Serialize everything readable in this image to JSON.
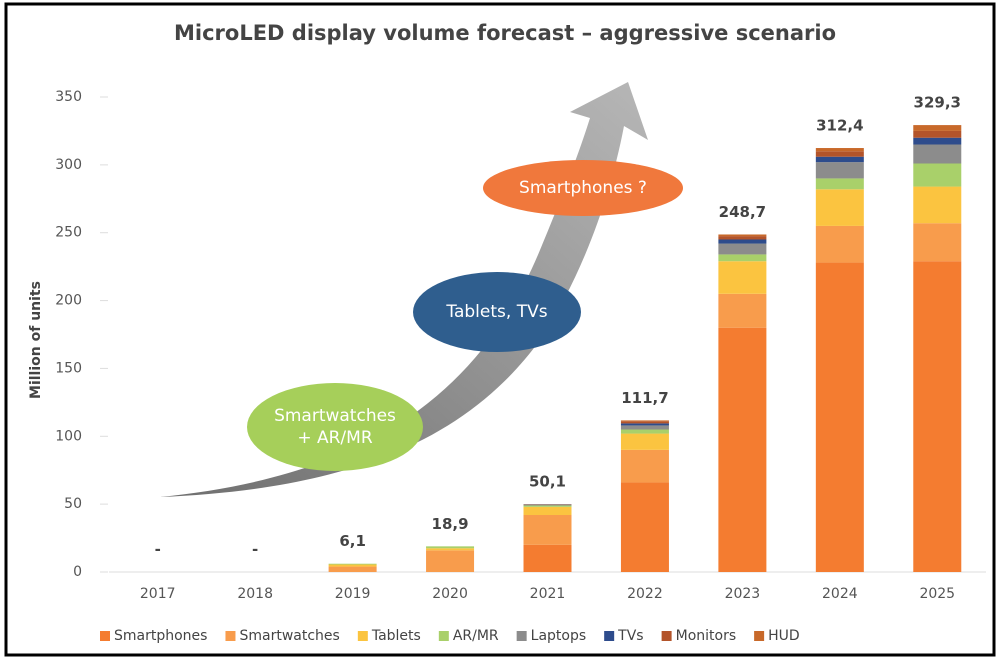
{
  "chart_data": {
    "type": "bar",
    "stacked": true,
    "title": "MicroLED display volume forecast – aggressive scenario",
    "y_label": "Million of units",
    "categories": [
      "2017",
      "2018",
      "2019",
      "2020",
      "2021",
      "2022",
      "2023",
      "2024",
      "2025"
    ],
    "series": [
      {
        "name": "Smartphones",
        "color": "#f47c30",
        "values": [
          0,
          0,
          0,
          0,
          20,
          66,
          180,
          228,
          229
        ]
      },
      {
        "name": "Smartwatches",
        "color": "#f89c4c",
        "values": [
          0,
          0,
          4,
          16,
          22,
          24,
          25,
          27,
          28
        ]
      },
      {
        "name": "Tablets",
        "color": "#fbc440",
        "values": [
          0,
          0,
          1.5,
          1.5,
          6,
          12,
          24,
          27,
          27
        ]
      },
      {
        "name": "AR/MR",
        "color": "#a9d06a",
        "values": [
          0,
          0,
          0.6,
          1.4,
          1,
          3,
          5,
          8,
          17
        ]
      },
      {
        "name": "Laptops",
        "color": "#8c8c8c",
        "values": [
          0,
          0,
          0,
          0,
          0.6,
          3,
          8,
          12,
          14
        ]
      },
      {
        "name": "TVs",
        "color": "#2e4c8c",
        "values": [
          0,
          0,
          0,
          0,
          0.2,
          1.5,
          3,
          4,
          5
        ]
      },
      {
        "name": "Monitors",
        "color": "#b3542a",
        "values": [
          0,
          0,
          0,
          0,
          0.2,
          1.5,
          2.5,
          4,
          5
        ]
      },
      {
        "name": "HUD",
        "color": "#c8692a",
        "values": [
          0,
          0,
          0,
          0,
          0.1,
          0.7,
          1.2,
          2.4,
          4.3
        ]
      }
    ],
    "totals": [
      0,
      0,
      6.1,
      18.9,
      50.1,
      111.7,
      248.7,
      312.4,
      329.3
    ],
    "value_labels": [
      "-",
      "-",
      "6,1",
      "18,9",
      "50,1",
      "111,7",
      "248,7",
      "312,4",
      "329,3"
    ],
    "ylim": [
      0,
      350
    ],
    "yticks": [
      0,
      50,
      100,
      150,
      200,
      250,
      300,
      350
    ],
    "legend": "bottom",
    "annotations": [
      {
        "lines": [
          "Smartphones ?"
        ],
        "color": "#f0783c"
      },
      {
        "lines": [
          "Tablets, TVs"
        ],
        "color": "#2f5e8e"
      },
      {
        "lines": [
          "Smartwatches",
          "+ AR/MR"
        ],
        "color": "#a6cf5a"
      }
    ]
  }
}
